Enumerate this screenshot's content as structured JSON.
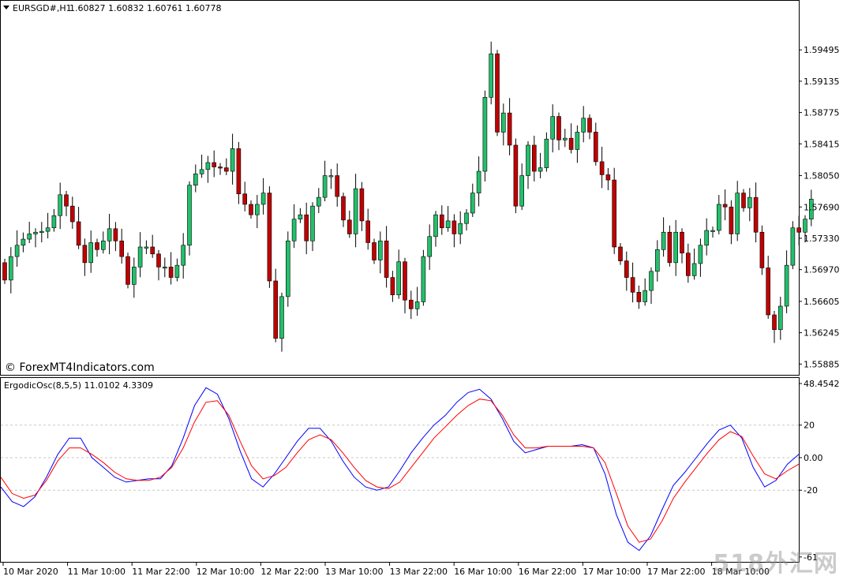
{
  "header": {
    "symbol": "EURSGD#,H1",
    "ohlc": "1.60827 1.60832 1.60761 1.60778",
    "copyright": "© ForexMT4Indicators.com"
  },
  "indicator": {
    "label": "ErgodicOsc(8,5,5) 11.0102 4.3309"
  },
  "watermark": "518外汇网",
  "colors": {
    "bull": "#22c06b",
    "bear": "#c00000",
    "wick": "#000000",
    "signal_blue": "#0000ff",
    "signal_red": "#ff0000",
    "grid": "#c8c8c8",
    "frame": "#000000"
  },
  "chart_data": [
    {
      "type": "candlestick",
      "title": "EURSGD#,H1",
      "ylim": [
        1.5577,
        1.6005
      ],
      "y_ticks": [
        "1.59495",
        "1.59135",
        "1.58775",
        "1.58415",
        "1.58050",
        "1.57690",
        "1.57330",
        "1.56970",
        "1.56605",
        "1.56245",
        "1.55885"
      ],
      "x_ticks": [
        "10 Mar 2020",
        "11 Mar 10:00",
        "11 Mar 22:00",
        "12 Mar 10:00",
        "12 Mar 22:00",
        "13 Mar 10:00",
        "13 Mar 22:00",
        "16 Mar 10:00",
        "16 Mar 22:00",
        "17 Mar 10:00",
        "17 Mar 22:00",
        "18 Mar 10:00"
      ],
      "closes": [
        1.5685,
        1.5712,
        1.5725,
        1.5732,
        1.5738,
        1.574,
        1.5741,
        1.5745,
        1.5759,
        1.5783,
        1.577,
        1.5752,
        1.5725,
        1.5705,
        1.5728,
        1.572,
        1.573,
        1.5744,
        1.573,
        1.5712,
        1.568,
        1.57,
        1.5723,
        1.5723,
        1.5715,
        1.57,
        1.57,
        1.5688,
        1.5702,
        1.5725,
        1.5794,
        1.5807,
        1.5812,
        1.582,
        1.5815,
        1.5814,
        1.581,
        1.5836,
        1.5784,
        1.5772,
        1.576,
        1.5772,
        1.5785,
        1.5684,
        1.5618,
        1.5666,
        1.573,
        1.5755,
        1.576,
        1.573,
        1.577,
        1.578,
        1.5805,
        1.5805,
        1.5781,
        1.5754,
        1.5738,
        1.579,
        1.5753,
        1.5728,
        1.5708,
        1.573,
        1.5688,
        1.5668,
        1.5706,
        1.5662,
        1.5652,
        1.566,
        1.5712,
        1.5735,
        1.576,
        1.5745,
        1.5753,
        1.5738,
        1.575,
        1.5762,
        1.5785,
        1.581,
        1.5895,
        1.5945,
        1.5855,
        1.5877,
        1.584,
        1.577,
        1.5805,
        1.584,
        1.581,
        1.5814,
        1.5847,
        1.5873,
        1.5846,
        1.5848,
        1.5835,
        1.5855,
        1.5871,
        1.5855,
        1.5821,
        1.5806,
        1.58,
        1.5723,
        1.5707,
        1.5688,
        1.5671,
        1.566,
        1.5673,
        1.5695,
        1.572,
        1.574,
        1.5705,
        1.574,
        1.5716,
        1.569,
        1.5704,
        1.5725,
        1.5742,
        1.5742,
        1.5772,
        1.5769,
        1.5738,
        1.5785,
        1.5768,
        1.578,
        1.574,
        1.5699,
        1.5645,
        1.5628,
        1.5655,
        1.5702,
        1.5745,
        1.574,
        1.5755,
        1.5778
      ]
    },
    {
      "type": "line",
      "title": "ErgodicOsc(8,5,5)",
      "ylim": [
        -64.0,
        48.4542
      ],
      "y_ticks": [
        "48.4542",
        "20",
        "0.00",
        "-20",
        "-61"
      ],
      "series": [
        {
          "name": "",
          "color": "#0000ff",
          "values": [
            -18,
            -27,
            -30,
            -24,
            -12,
            2,
            12,
            12,
            0,
            -6,
            -12,
            -15,
            -14,
            -13,
            -13,
            -5,
            12,
            32,
            43,
            39,
            24,
            4,
            -13,
            -18,
            -10,
            0,
            10,
            18,
            18,
            10,
            -2,
            -12,
            -18,
            -20,
            -18,
            -8,
            3,
            12,
            20,
            26,
            34,
            40,
            42,
            36,
            24,
            10,
            3,
            5,
            7,
            7,
            7,
            8,
            6,
            -10,
            -35,
            -52,
            -57,
            -48,
            -32,
            -17,
            -9,
            0,
            9,
            17,
            20,
            12,
            -6,
            -18,
            -14,
            -4,
            2
          ]
        },
        {
          "name": "",
          "color": "#ff0000",
          "values": [
            -12,
            -22,
            -25,
            -23,
            -14,
            -2,
            6,
            6,
            2,
            -3,
            -9,
            -13,
            -14,
            -14,
            -12,
            -6,
            6,
            22,
            34,
            35,
            26,
            10,
            -5,
            -13,
            -11,
            -6,
            3,
            11,
            14,
            11,
            3,
            -6,
            -14,
            -18,
            -19,
            -15,
            -6,
            3,
            12,
            19,
            26,
            32,
            36,
            35,
            26,
            14,
            6,
            6,
            7,
            7,
            7,
            7,
            6,
            -3,
            -22,
            -42,
            -52,
            -50,
            -39,
            -25,
            -15,
            -6,
            3,
            11,
            16,
            13,
            1,
            -10,
            -13,
            -8,
            -4
          ]
        }
      ]
    }
  ]
}
